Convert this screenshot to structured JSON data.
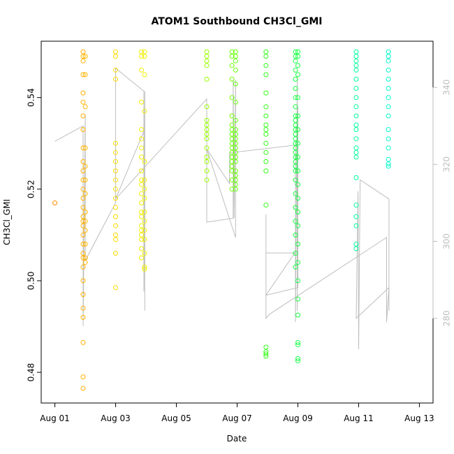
{
  "chart_data": {
    "type": "scatter",
    "title": "ATOM1 Southbound CH3Cl_GMI",
    "xlabel": "Date",
    "ylabel": "CH3Cl_GMI",
    "x_unit": "days since Aug 01",
    "xlim": [
      -0.45,
      12.45
    ],
    "ylim": [
      0.4733,
      0.5523
    ],
    "y2lim": [
      258,
      352
    ],
    "x_ticks": [
      {
        "value": 0,
        "label": "Aug 01"
      },
      {
        "value": 2,
        "label": "Aug 03"
      },
      {
        "value": 4,
        "label": "Aug 05"
      },
      {
        "value": 6,
        "label": "Aug 07"
      },
      {
        "value": 8,
        "label": "Aug 09"
      },
      {
        "value": 10,
        "label": "Aug 11"
      },
      {
        "value": 12,
        "label": "Aug 13"
      }
    ],
    "y_ticks": [
      {
        "value": 0.48,
        "label": "0.48"
      },
      {
        "value": 0.5,
        "label": "0.50"
      },
      {
        "value": 0.52,
        "label": "0.52"
      },
      {
        "value": 0.54,
        "label": "0.54"
      }
    ],
    "y2_ticks": [
      {
        "value": 280,
        "label": "280"
      },
      {
        "value": 300,
        "label": "300"
      },
      {
        "value": 320,
        "label": "320"
      },
      {
        "value": 340,
        "label": "340"
      }
    ],
    "grid": false,
    "legend": "none",
    "colors": {
      "scatter_gradient": [
        "#ff8c00",
        "#ffd700",
        "#e5ff00",
        "#7cff00",
        "#22ff22",
        "#00ff7f",
        "#00ffcc"
      ],
      "line": "#bebebe",
      "right_axis": "#bdbdbd"
    },
    "clusters": [
      {
        "x": 0.0,
        "y": [
          0.517
        ]
      },
      {
        "x": 0.93,
        "y": [
          0.55,
          0.549,
          0.548,
          0.545,
          0.541,
          0.539,
          0.536,
          0.533,
          0.529,
          0.526,
          0.524,
          0.522,
          0.52,
          0.518,
          0.516,
          0.514,
          0.513,
          0.512,
          0.51,
          0.508,
          0.506,
          0.505,
          0.503,
          0.5,
          0.497,
          0.494,
          0.492,
          0.4865,
          0.479,
          0.4765
        ]
      },
      {
        "x": 1.0,
        "y": [
          0.549,
          0.545,
          0.538,
          0.529,
          0.525,
          0.522,
          0.519,
          0.515,
          0.513,
          0.511,
          0.508,
          0.505,
          0.504
        ]
      },
      {
        "x": 2.0,
        "y": [
          0.55,
          0.549,
          0.546,
          0.544,
          0.53,
          0.528,
          0.526,
          0.524,
          0.522,
          0.52,
          0.518,
          0.516,
          0.514,
          0.512,
          0.51,
          0.509,
          0.506,
          0.4985
        ]
      },
      {
        "x": 2.85,
        "y": [
          0.55,
          0.549,
          0.546,
          0.539,
          0.533,
          0.531,
          0.529,
          0.527,
          0.524,
          0.522,
          0.521,
          0.519,
          0.517,
          0.515,
          0.514,
          0.512,
          0.511,
          0.51,
          0.509,
          0.507,
          0.505
        ]
      },
      {
        "x": 2.95,
        "y": [
          0.55,
          0.549,
          0.545,
          0.537,
          0.526,
          0.522,
          0.52,
          0.518,
          0.515,
          0.513,
          0.511,
          0.509,
          0.506,
          0.503,
          0.5025
        ]
      },
      {
        "x": 5.0,
        "y": [
          0.55,
          0.549,
          0.548,
          0.547,
          0.544,
          0.538,
          0.535,
          0.534,
          0.533,
          0.532,
          0.531,
          0.529,
          0.527,
          0.526,
          0.524,
          0.522
        ]
      },
      {
        "x": 5.83,
        "y": [
          0.55,
          0.549,
          0.547,
          0.544,
          0.54,
          0.536,
          0.534,
          0.533,
          0.532,
          0.531,
          0.53,
          0.529,
          0.528,
          0.527,
          0.526,
          0.525,
          0.524,
          0.522,
          0.52
        ]
      },
      {
        "x": 5.95,
        "y": [
          0.55,
          0.549,
          0.548,
          0.546,
          0.543,
          0.539,
          0.535,
          0.533,
          0.532,
          0.531,
          0.53,
          0.529,
          0.528,
          0.527,
          0.526,
          0.524,
          0.523,
          0.522,
          0.521,
          0.52
        ]
      },
      {
        "x": 6.95,
        "y": [
          0.55,
          0.549,
          0.547,
          0.545,
          0.541,
          0.538,
          0.536,
          0.534,
          0.533,
          0.532,
          0.53,
          0.528,
          0.526,
          0.524,
          0.5165,
          0.4855,
          0.4845,
          0.484,
          0.4835
        ]
      },
      {
        "x": 7.92,
        "y": [
          0.55,
          0.549,
          0.548,
          0.546,
          0.544,
          0.542,
          0.54,
          0.538,
          0.536,
          0.535,
          0.534,
          0.533,
          0.532,
          0.531,
          0.53,
          0.529,
          0.528,
          0.527,
          0.526,
          0.525,
          0.524,
          0.522,
          0.519,
          0.516,
          0.513,
          0.51,
          0.506,
          0.503
        ]
      },
      {
        "x": 8.0,
        "y": [
          0.55,
          0.549,
          0.547,
          0.545,
          0.54,
          0.536,
          0.533,
          0.53,
          0.527,
          0.524,
          0.521,
          0.518,
          0.515,
          0.512,
          0.508,
          0.504,
          0.5,
          0.496,
          0.4925,
          0.4865,
          0.486,
          0.483,
          0.4825
        ]
      },
      {
        "x": 9.92,
        "y": [
          0.55,
          0.549,
          0.548,
          0.547,
          0.546,
          0.544,
          0.542,
          0.54,
          0.538,
          0.536,
          0.534,
          0.533,
          0.531,
          0.529,
          0.528,
          0.527,
          0.5225,
          0.5165,
          0.514,
          0.512,
          0.508,
          0.507
        ]
      },
      {
        "x": 10.98,
        "y": [
          0.55,
          0.549,
          0.548,
          0.546,
          0.544,
          0.542,
          0.54,
          0.538,
          0.536,
          0.533,
          0.531,
          0.529,
          0.5265,
          0.5255,
          0.525
        ]
      }
    ],
    "line": {
      "axis": "right",
      "path": [
        [
          0.0,
          326
        ],
        [
          0.93,
          330
        ],
        [
          0.93,
          278
        ],
        [
          1.0,
          333
        ],
        [
          1.0,
          295
        ],
        [
          2.0,
          310
        ],
        [
          2.0,
          345
        ],
        [
          2.93,
          339
        ],
        [
          2.93,
          287
        ],
        [
          2.96,
          339
        ],
        [
          2.96,
          282
        ],
        [
          2.95,
          329
        ],
        [
          2.0,
          311
        ],
        [
          5.0,
          337
        ],
        [
          5.0,
          305
        ],
        [
          5.87,
          306
        ],
        [
          5.87,
          342
        ],
        [
          5.9,
          306
        ],
        [
          5.95,
          342
        ],
        [
          5.95,
          301
        ],
        [
          5.0,
          324
        ],
        [
          5.75,
          315
        ],
        [
          5.75,
          323
        ],
        [
          7.92,
          325
        ],
        [
          7.92,
          279
        ],
        [
          7.98,
          343
        ],
        [
          7.98,
          282
        ],
        [
          8.0,
          335
        ],
        [
          8.0,
          288
        ],
        [
          6.95,
          286
        ],
        [
          7.9,
          297
        ],
        [
          6.95,
          297
        ],
        [
          6.95,
          307
        ],
        [
          6.95,
          280
        ],
        [
          7.05,
          281
        ],
        [
          10.92,
          301
        ],
        [
          10.92,
          279
        ],
        [
          11.0,
          288
        ],
        [
          9.92,
          280
        ],
        [
          9.98,
          313
        ],
        [
          10.0,
          272
        ],
        [
          10.05,
          316
        ],
        [
          11.0,
          311
        ],
        [
          11.0,
          282
        ]
      ]
    }
  }
}
